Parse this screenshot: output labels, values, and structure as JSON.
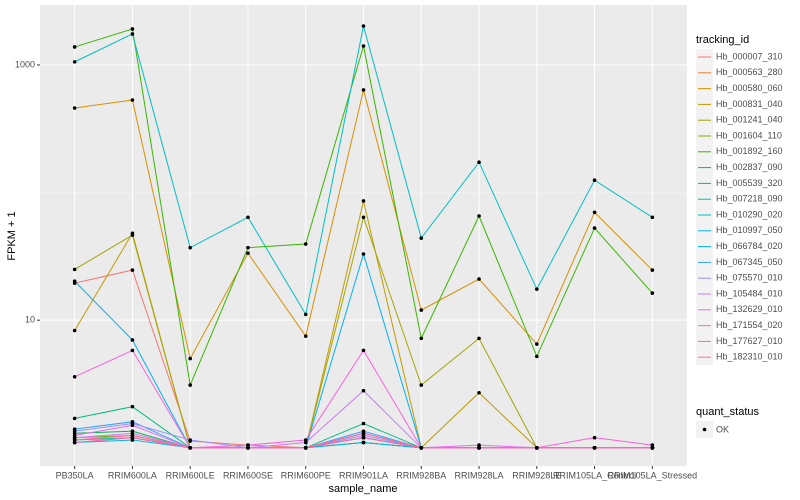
{
  "chart_data": {
    "type": "line",
    "y_label": "FPKM + 1",
    "x_label": "sample_name",
    "log_y": true,
    "grid": true,
    "categories": [
      "PB350LA",
      "RRIM600LA",
      "RRIM600LE",
      "RRIM600SE",
      "RRIM600PE",
      "RRIM901LA",
      "RRIM928BA",
      "RRIM928LA",
      "RRIM928LE",
      "RRIM105LA_Control",
      "RRIM105LA_Stressed"
    ],
    "ylim": [
      0.72,
      2950
    ],
    "yticks": [
      10,
      1000
    ],
    "legend_title": "tracking_id",
    "legend_position": "right",
    "status_legend_title": "quant_status",
    "status_legend_label": "OK",
    "series": [
      {
        "name": "Hb_000007_310",
        "color": "#F8766D",
        "values": [
          19.5,
          24.7,
          1.13,
          1.05,
          1,
          1.1,
          1,
          1,
          1,
          1,
          1
        ]
      },
      {
        "name": "Hb_000563_280",
        "color": "#EA8331",
        "values": [
          1.1,
          1.2,
          1,
          1,
          1,
          1.2,
          1,
          1,
          1,
          1,
          1
        ]
      },
      {
        "name": "Hb_000580_060",
        "color": "#D89000",
        "values": [
          460,
          531,
          5.0,
          33.5,
          7.5,
          637,
          12,
          21,
          6.5,
          70,
          24.7
        ]
      },
      {
        "name": "Hb_000831_040",
        "color": "#C09B00",
        "values": [
          8.3,
          48,
          1,
          1,
          1,
          86,
          1,
          2.7,
          1,
          1,
          1
        ]
      },
      {
        "name": "Hb_001241_040",
        "color": "#A3A500",
        "values": [
          25,
          46.4,
          1,
          1,
          1,
          64,
          3.1,
          7.2,
          1,
          1,
          1
        ]
      },
      {
        "name": "Hb_001604_110",
        "color": "#7CAE00",
        "values": [
          1.2,
          1.25,
          1,
          1,
          1,
          1.3,
          1,
          1,
          1,
          1,
          1
        ]
      },
      {
        "name": "Hb_001892_160",
        "color": "#39B600",
        "values": [
          1384,
          1914,
          3.1,
          37,
          39.5,
          1408,
          7.2,
          65.5,
          5.2,
          52.7,
          16.3
        ]
      },
      {
        "name": "Hb_002837_090",
        "color": "#00BB4E",
        "values": [
          1.3,
          1.35,
          1,
          1,
          1,
          1.2,
          1,
          1,
          1,
          1,
          1
        ]
      },
      {
        "name": "Hb_005539_320",
        "color": "#00BF7D",
        "values": [
          1.7,
          2.1,
          1,
          1,
          1,
          1.55,
          1,
          1,
          1,
          1,
          1
        ]
      },
      {
        "name": "Hb_007218_090",
        "color": "#00C1A3",
        "values": [
          1.15,
          1.2,
          1,
          1,
          1,
          1.1,
          1,
          1,
          1,
          1,
          1
        ]
      },
      {
        "name": "Hb_010290_020",
        "color": "#00BFC4",
        "values": [
          1057,
          1750,
          37,
          64,
          11.1,
          2020,
          44,
          173,
          17.5,
          125,
          64
        ]
      },
      {
        "name": "Hb_010997_050",
        "color": "#00BAE0",
        "values": [
          1.1,
          1.15,
          1,
          1,
          1,
          1.1,
          1,
          1,
          1,
          1,
          1
        ]
      },
      {
        "name": "Hb_066784_020",
        "color": "#00B0F6",
        "values": [
          20.2,
          7,
          1,
          1,
          1,
          33,
          1,
          1,
          1,
          1,
          1
        ]
      },
      {
        "name": "Hb_067345_050",
        "color": "#35A2FF",
        "values": [
          1.4,
          1.6,
          1,
          1,
          1,
          1.35,
          1,
          1,
          1,
          1,
          1
        ]
      },
      {
        "name": "Hb_075570_010",
        "color": "#9590FF",
        "values": [
          1.35,
          1.55,
          1.15,
          1,
          1,
          1.25,
          1,
          1,
          1,
          1,
          1
        ]
      },
      {
        "name": "Hb_105484_010",
        "color": "#C77CFF",
        "values": [
          1.2,
          1.3,
          1,
          1,
          1.1,
          2.8,
          1,
          1,
          1,
          1,
          1
        ]
      },
      {
        "name": "Hb_132629_010",
        "color": "#E76BF3",
        "values": [
          1.25,
          1.5,
          1,
          1,
          1,
          1.3,
          1,
          1.05,
          1,
          1,
          1
        ]
      },
      {
        "name": "Hb_171554_020",
        "color": "#FA62DB",
        "values": [
          3.6,
          5.8,
          1,
          1.05,
          1.15,
          5.8,
          1,
          1,
          1,
          1.2,
          1.05
        ]
      },
      {
        "name": "Hb_177627_010",
        "color": "#FF62BC",
        "values": [
          1.1,
          1.2,
          1,
          1,
          1,
          1.2,
          1,
          1,
          1,
          1,
          1
        ]
      },
      {
        "name": "Hb_182310_010",
        "color": "#FF6C91",
        "values": [
          1.15,
          1.25,
          1,
          1,
          1,
          1.3,
          1,
          1,
          1,
          1,
          1
        ]
      }
    ]
  }
}
